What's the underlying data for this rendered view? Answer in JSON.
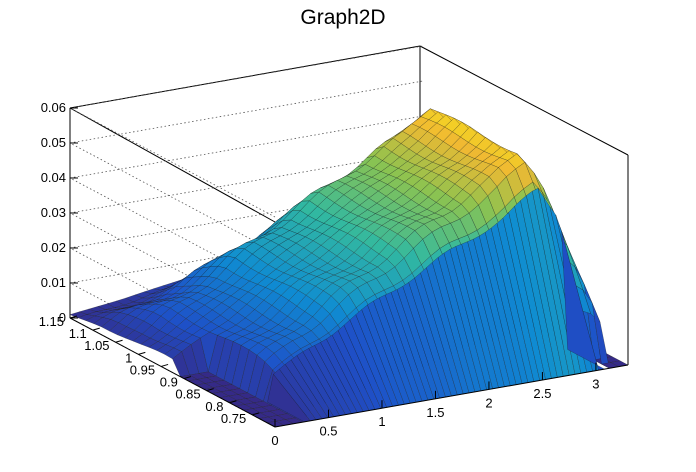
{
  "chart_data": {
    "type": "surface3d",
    "title": "Graph2D",
    "xlabel": "",
    "ylabel": "",
    "zlabel": "",
    "x_ticks": [
      "0",
      "0.5",
      "1",
      "1.5",
      "2",
      "2.5",
      "3"
    ],
    "y_ticks": [
      "1.15",
      "1.1",
      "1.05",
      "1",
      "0.95",
      "0.9",
      "0.85",
      "0.8",
      "0.75"
    ],
    "z_ticks": [
      "0",
      "0.01",
      "0.02",
      "0.03",
      "0.04",
      "0.05",
      "0.06"
    ],
    "xlim": [
      0,
      3.3
    ],
    "ylim": [
      0.7,
      1.15
    ],
    "zlim": [
      0,
      0.06
    ],
    "grid": true,
    "colormap": "viridis-like (blue→green→yellow)",
    "ridge_x": [
      0,
      0.5,
      1,
      1.5,
      2,
      2.5,
      2.8,
      3.0,
      3.2
    ],
    "ridge_z_max": [
      0.004,
      0.012,
      0.022,
      0.031,
      0.04,
      0.048,
      0.056,
      0.045,
      0.01
    ],
    "colors": {
      "low": "#2a3e9e",
      "mid": "#12a9c6",
      "green": "#7ec26a",
      "high": "#f7df2a",
      "mesh": "#1a1a1a"
    }
  }
}
